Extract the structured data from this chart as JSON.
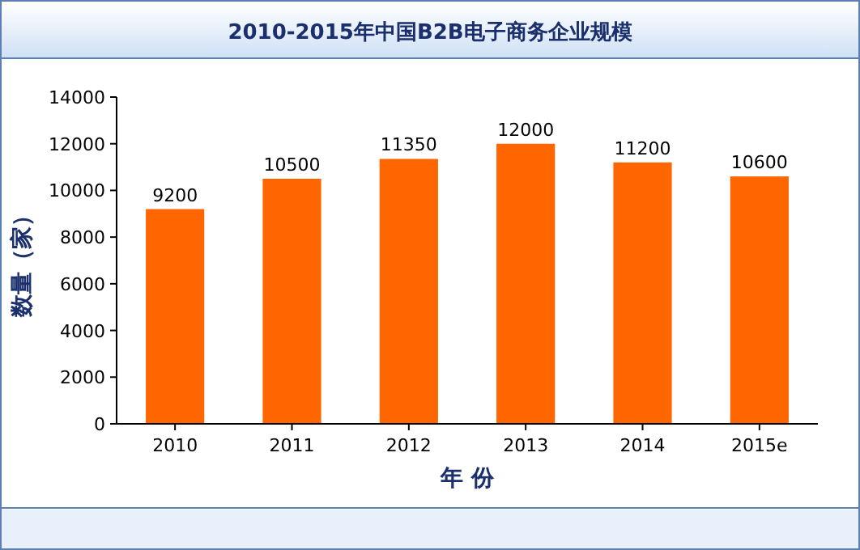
{
  "chart_data": {
    "type": "bar",
    "title": "2010-2015年中国B2B电子商务企业规模",
    "xlabel": "年 份",
    "ylabel": "数量（家）",
    "categories": [
      "2010",
      "2011",
      "2012",
      "2013",
      "2014",
      "2015e"
    ],
    "values": [
      9200,
      10500,
      11350,
      12000,
      11200,
      10600
    ],
    "color": "#ff6600",
    "ylim": [
      0,
      14000
    ],
    "yticks": [
      0,
      2000,
      4000,
      6000,
      8000,
      10000,
      12000,
      14000
    ],
    "grid": false,
    "data_labels": true
  }
}
